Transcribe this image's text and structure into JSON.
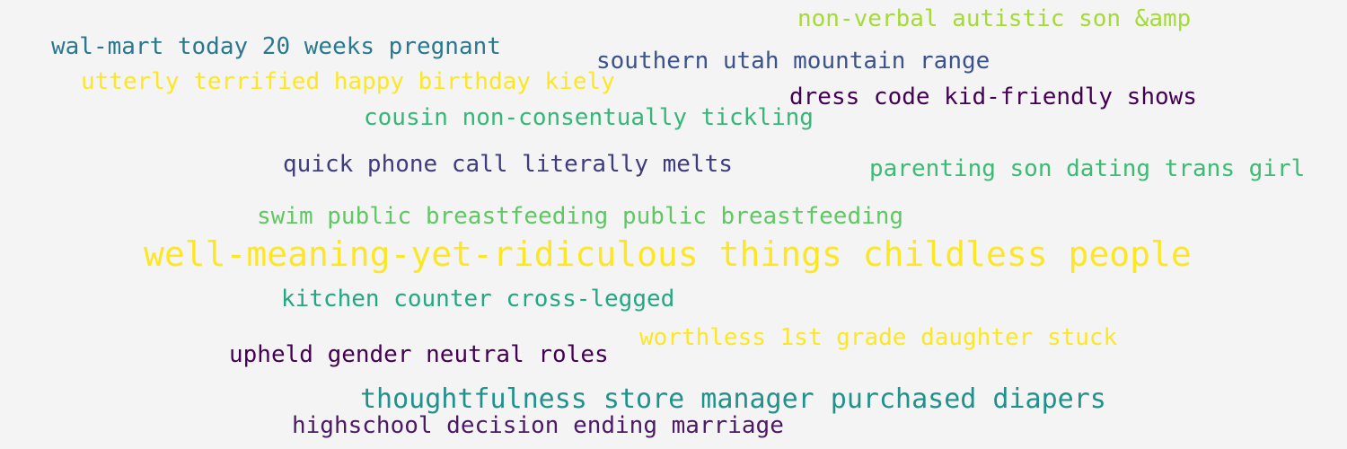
{
  "word_cloud": {
    "phrases": [
      "non-verbal autistic son &amp",
      "wal-mart today 20 weeks pregnant",
      "southern utah mountain range",
      "utterly terrified happy birthday kiely",
      "dress code kid-friendly shows",
      "cousin non-consentually tickling",
      "quick phone call literally melts",
      "parenting son dating trans girl",
      "swim public breastfeeding public breastfeeding",
      "well-meaning-yet-ridiculous things childless people",
      "kitchen counter cross-legged",
      "worthless 1st grade daughter stuck",
      "upheld gender neutral roles",
      "thoughtfulness store manager purchased diapers",
      "highschool decision ending marriage"
    ]
  }
}
